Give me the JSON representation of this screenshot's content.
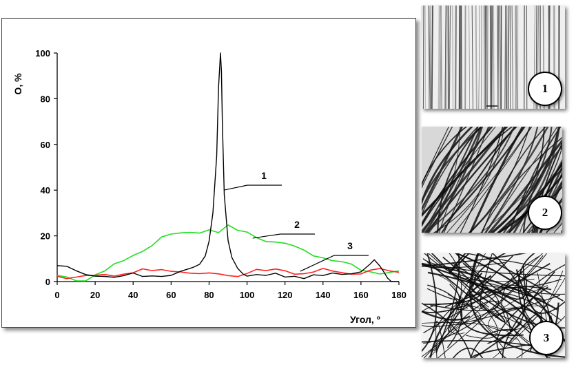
{
  "chart_data": {
    "type": "line",
    "title": "",
    "xlabel": "Угол, º",
    "ylabel": "O, %",
    "xlim": [
      0,
      180
    ],
    "ylim": [
      0,
      100
    ],
    "xticks": [
      0,
      20,
      40,
      60,
      80,
      100,
      120,
      140,
      160,
      180
    ],
    "yticks": [
      0,
      20,
      40,
      60,
      80,
      100
    ],
    "grid": false,
    "legend": "none",
    "series": [
      {
        "label": "1",
        "color": "#000000",
        "x": [
          0,
          5,
          10,
          15,
          20,
          25,
          30,
          35,
          40,
          45,
          50,
          55,
          60,
          65,
          70,
          72,
          75,
          78,
          80,
          82,
          84,
          85,
          86,
          86.5,
          87,
          88,
          90,
          92,
          95,
          98,
          100,
          105,
          110,
          115,
          120,
          125,
          130,
          135,
          140,
          145,
          150,
          155,
          160,
          165,
          167,
          170,
          172,
          174,
          176,
          180
        ],
        "y": [
          7,
          6,
          4,
          3,
          3,
          3,
          2,
          2,
          3,
          2,
          3,
          3,
          3,
          4,
          5,
          6,
          8,
          12,
          18,
          30,
          55,
          85,
          100,
          92,
          70,
          38,
          18,
          10,
          6,
          4,
          3,
          3,
          2,
          3,
          2,
          3,
          2,
          3,
          2,
          3,
          3,
          4,
          5,
          8,
          9,
          6,
          4,
          2,
          0,
          0
        ]
      },
      {
        "label": "2",
        "color": "#22dd22",
        "x": [
          0,
          5,
          10,
          15,
          20,
          25,
          30,
          35,
          40,
          45,
          50,
          55,
          60,
          65,
          70,
          75,
          80,
          85,
          90,
          95,
          100,
          105,
          110,
          115,
          120,
          125,
          130,
          135,
          140,
          145,
          150,
          155,
          160,
          165,
          170,
          175,
          180
        ],
        "y": [
          2,
          2,
          1,
          1,
          3,
          4,
          7,
          9,
          12,
          14,
          16,
          19,
          20,
          21,
          22,
          22,
          23,
          21,
          24,
          22,
          22,
          20,
          18,
          17,
          16,
          15,
          14,
          12,
          11,
          9,
          8,
          7,
          5,
          5,
          4,
          4,
          4
        ]
      },
      {
        "label": "3",
        "color": "#ff2020",
        "x": [
          0,
          5,
          10,
          15,
          20,
          25,
          30,
          35,
          40,
          45,
          50,
          55,
          60,
          65,
          70,
          75,
          80,
          85,
          90,
          95,
          100,
          105,
          110,
          115,
          120,
          125,
          130,
          135,
          140,
          145,
          150,
          155,
          160,
          165,
          170,
          175,
          180
        ],
        "y": [
          3,
          2,
          2,
          2,
          2,
          3,
          3,
          4,
          4,
          5,
          4,
          5,
          5,
          5,
          4,
          3,
          3,
          3,
          3,
          3,
          4,
          5,
          4,
          5,
          5,
          4,
          4,
          4,
          5,
          4,
          4,
          4,
          4,
          5,
          5,
          4,
          4
        ]
      }
    ],
    "annotations": [
      {
        "text": "1",
        "series": 0,
        "point_x": 87
      },
      {
        "text": "2",
        "series": 1,
        "point_x": 103
      },
      {
        "text": "3",
        "series": 2,
        "point_x": 128
      }
    ]
  },
  "panels": [
    {
      "label": "1",
      "pattern": "aligned-fibers"
    },
    {
      "label": "2",
      "pattern": "partially-oriented-fibers"
    },
    {
      "label": "3",
      "pattern": "random-fibers"
    }
  ]
}
